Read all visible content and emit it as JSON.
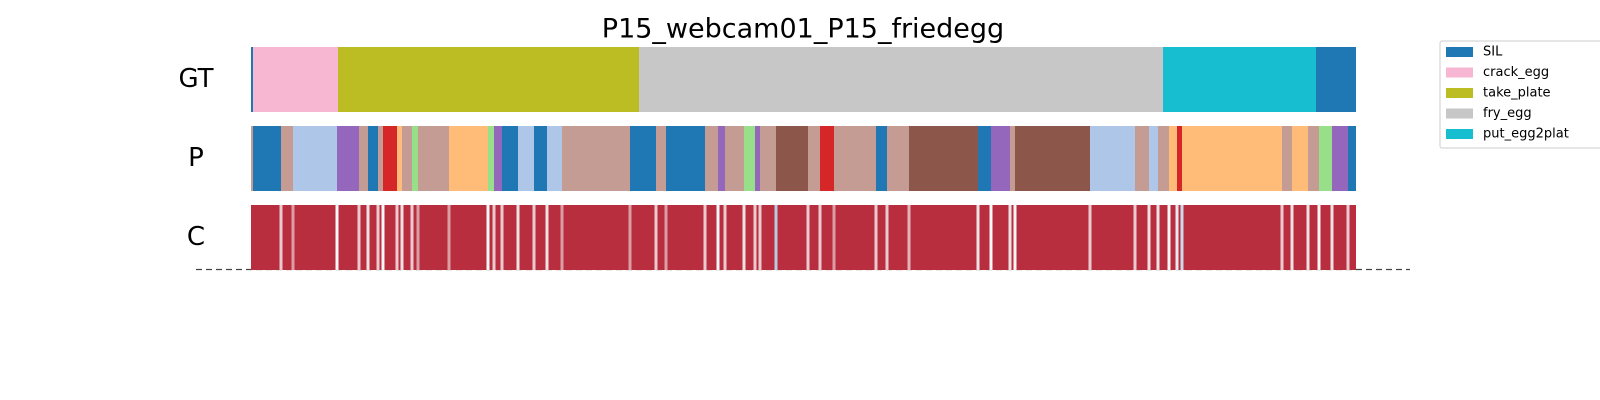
{
  "chart_data": {
    "type": "segmentation",
    "title": "P15_webcam01_P15_friedegg",
    "rows": [
      "GT",
      "P",
      "C"
    ],
    "xlim": [
      0,
      1105
    ],
    "classes": [
      {
        "name": "SIL",
        "color": "#1f77b4"
      },
      {
        "name": "crack_egg",
        "color": "#f7b6d2"
      },
      {
        "name": "take_plate",
        "color": "#bcbd22"
      },
      {
        "name": "fry_egg",
        "color": "#c7c7c7"
      },
      {
        "name": "put_egg2plat",
        "color": "#17becf"
      }
    ],
    "gt": [
      {
        "start": 0,
        "end": 2,
        "class": 0
      },
      {
        "start": 2,
        "end": 87,
        "class": 1
      },
      {
        "start": 87,
        "end": 388,
        "class": 2
      },
      {
        "start": 388,
        "end": 912,
        "class": 3
      },
      {
        "start": 912,
        "end": 1065,
        "class": 4
      },
      {
        "start": 1065,
        "end": 1105,
        "class": 0
      }
    ],
    "pred": [
      {
        "start": 0,
        "end": 2,
        "color": "#c49c94"
      },
      {
        "start": 2,
        "end": 30,
        "color": "#1f77b4"
      },
      {
        "start": 30,
        "end": 42,
        "color": "#c49c94"
      },
      {
        "start": 42,
        "end": 86,
        "color": "#aec7e8"
      },
      {
        "start": 86,
        "end": 108,
        "color": "#9467bd"
      },
      {
        "start": 108,
        "end": 117,
        "color": "#c49c94"
      },
      {
        "start": 117,
        "end": 127,
        "color": "#1f77b4"
      },
      {
        "start": 127,
        "end": 132,
        "color": "#c49c94"
      },
      {
        "start": 132,
        "end": 146,
        "color": "#d62728"
      },
      {
        "start": 146,
        "end": 151,
        "color": "#ffbb78"
      },
      {
        "start": 151,
        "end": 161,
        "color": "#c49c94"
      },
      {
        "start": 161,
        "end": 167,
        "color": "#98df8a"
      },
      {
        "start": 167,
        "end": 198,
        "color": "#c49c94"
      },
      {
        "start": 198,
        "end": 237,
        "color": "#ffbb78"
      },
      {
        "start": 237,
        "end": 243,
        "color": "#98df8a"
      },
      {
        "start": 243,
        "end": 251,
        "color": "#9467bd"
      },
      {
        "start": 251,
        "end": 267,
        "color": "#1f77b4"
      },
      {
        "start": 267,
        "end": 283,
        "color": "#aec7e8"
      },
      {
        "start": 283,
        "end": 296,
        "color": "#1f77b4"
      },
      {
        "start": 296,
        "end": 311,
        "color": "#aec7e8"
      },
      {
        "start": 311,
        "end": 379,
        "color": "#c49c94"
      },
      {
        "start": 379,
        "end": 405,
        "color": "#1f77b4"
      },
      {
        "start": 405,
        "end": 415,
        "color": "#c49c94"
      },
      {
        "start": 415,
        "end": 454,
        "color": "#1f77b4"
      },
      {
        "start": 454,
        "end": 467,
        "color": "#c49c94"
      },
      {
        "start": 467,
        "end": 474,
        "color": "#9467bd"
      },
      {
        "start": 474,
        "end": 493,
        "color": "#c49c94"
      },
      {
        "start": 493,
        "end": 504,
        "color": "#98df8a"
      },
      {
        "start": 504,
        "end": 509,
        "color": "#9467bd"
      },
      {
        "start": 509,
        "end": 525,
        "color": "#c49c94"
      },
      {
        "start": 525,
        "end": 557,
        "color": "#8c564b"
      },
      {
        "start": 557,
        "end": 569,
        "color": "#c49c94"
      },
      {
        "start": 569,
        "end": 583,
        "color": "#d62728"
      },
      {
        "start": 583,
        "end": 625,
        "color": "#c49c94"
      },
      {
        "start": 625,
        "end": 636,
        "color": "#1f77b4"
      },
      {
        "start": 636,
        "end": 658,
        "color": "#c49c94"
      },
      {
        "start": 658,
        "end": 727,
        "color": "#8c564b"
      },
      {
        "start": 727,
        "end": 740,
        "color": "#1f77b4"
      },
      {
        "start": 740,
        "end": 759,
        "color": "#9467bd"
      },
      {
        "start": 759,
        "end": 764,
        "color": "#c49c94"
      },
      {
        "start": 764,
        "end": 839,
        "color": "#8c564b"
      },
      {
        "start": 839,
        "end": 884,
        "color": "#aec7e8"
      },
      {
        "start": 884,
        "end": 898,
        "color": "#c49c94"
      },
      {
        "start": 898,
        "end": 907,
        "color": "#aec7e8"
      },
      {
        "start": 907,
        "end": 918,
        "color": "#c49c94"
      },
      {
        "start": 918,
        "end": 926,
        "color": "#ffbb78"
      },
      {
        "start": 926,
        "end": 931,
        "color": "#d62728"
      },
      {
        "start": 931,
        "end": 1031,
        "color": "#ffbb78"
      },
      {
        "start": 1031,
        "end": 1041,
        "color": "#c49c94"
      },
      {
        "start": 1041,
        "end": 1057,
        "color": "#ffbb78"
      },
      {
        "start": 1057,
        "end": 1068,
        "color": "#c49c94"
      },
      {
        "start": 1068,
        "end": 1081,
        "color": "#98df8a"
      },
      {
        "start": 1081,
        "end": 1097,
        "color": "#9467bd"
      },
      {
        "start": 1097,
        "end": 1105,
        "color": "#1f77b4"
      }
    ],
    "confidence": {
      "base": 0.95,
      "dips": [
        {
          "x": 30,
          "value": 0.6
        },
        {
          "x": 42,
          "value": 0.7
        },
        {
          "x": 86,
          "value": 0.5
        },
        {
          "x": 108,
          "value": 0.6
        },
        {
          "x": 117,
          "value": 0.55
        },
        {
          "x": 127,
          "value": 0.6
        },
        {
          "x": 132,
          "value": 0.5
        },
        {
          "x": 146,
          "value": 0.6
        },
        {
          "x": 151,
          "value": 0.55
        },
        {
          "x": 161,
          "value": 0.6
        },
        {
          "x": 167,
          "value": 0.7
        },
        {
          "x": 198,
          "value": 0.7
        },
        {
          "x": 237,
          "value": 0.5
        },
        {
          "x": 243,
          "value": 0.6
        },
        {
          "x": 251,
          "value": 0.6
        },
        {
          "x": 267,
          "value": 0.55
        },
        {
          "x": 283,
          "value": 0.6
        },
        {
          "x": 296,
          "value": 0.55
        },
        {
          "x": 311,
          "value": 0.7
        },
        {
          "x": 379,
          "value": 0.7
        },
        {
          "x": 405,
          "value": 0.6
        },
        {
          "x": 415,
          "value": 0.7
        },
        {
          "x": 454,
          "value": 0.6
        },
        {
          "x": 467,
          "value": 0.5
        },
        {
          "x": 474,
          "value": 0.6
        },
        {
          "x": 493,
          "value": 0.55
        },
        {
          "x": 504,
          "value": 0.6
        },
        {
          "x": 509,
          "value": 0.6
        },
        {
          "x": 525,
          "value": 0.35
        },
        {
          "x": 557,
          "value": 0.6
        },
        {
          "x": 569,
          "value": 0.6
        },
        {
          "x": 583,
          "value": 0.7
        },
        {
          "x": 625,
          "value": 0.6
        },
        {
          "x": 636,
          "value": 0.6
        },
        {
          "x": 658,
          "value": 0.65
        },
        {
          "x": 727,
          "value": 0.55
        },
        {
          "x": 740,
          "value": 0.5
        },
        {
          "x": 759,
          "value": 0.55
        },
        {
          "x": 764,
          "value": 0.5
        },
        {
          "x": 839,
          "value": 0.6
        },
        {
          "x": 884,
          "value": 0.6
        },
        {
          "x": 898,
          "value": 0.55
        },
        {
          "x": 907,
          "value": 0.55
        },
        {
          "x": 918,
          "value": 0.5
        },
        {
          "x": 926,
          "value": 0.45
        },
        {
          "x": 931,
          "value": 0.4
        },
        {
          "x": 1031,
          "value": 0.6
        },
        {
          "x": 1041,
          "value": 0.55
        },
        {
          "x": 1057,
          "value": 0.55
        },
        {
          "x": 1068,
          "value": 0.5
        },
        {
          "x": 1081,
          "value": 0.55
        },
        {
          "x": 1097,
          "value": 0.6
        }
      ]
    }
  }
}
